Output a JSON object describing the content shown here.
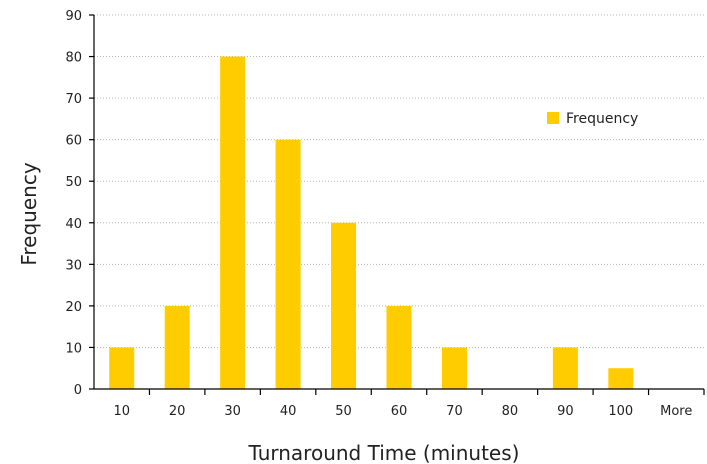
{
  "chart_data": {
    "type": "bar",
    "categories": [
      "10",
      "20",
      "30",
      "40",
      "50",
      "60",
      "70",
      "80",
      "90",
      "100",
      "More"
    ],
    "series": [
      {
        "name": "Frequency",
        "values": [
          10,
          20,
          80,
          60,
          40,
          20,
          10,
          0,
          10,
          5,
          0
        ],
        "color": "#FFCC00"
      }
    ],
    "xlabel": "Turnaround Time (minutes)",
    "ylabel": "Frequency",
    "ylim": [
      0,
      90
    ],
    "yticks": [
      0,
      10,
      20,
      30,
      40,
      50,
      60,
      70,
      80,
      90
    ],
    "grid": true,
    "legend": "top-right"
  }
}
